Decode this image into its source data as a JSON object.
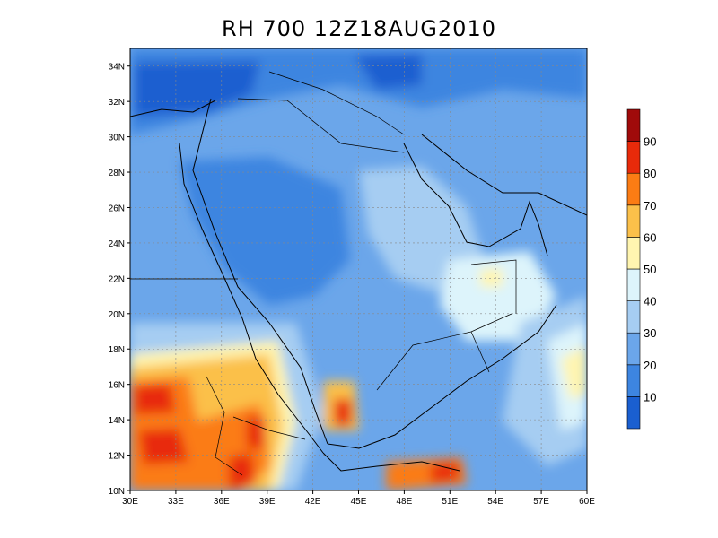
{
  "title": "RH 700 12Z18AUG2010",
  "chart_data": {
    "type": "heatmap",
    "title": "RH 700 12Z18AUG2010",
    "field": "relative humidity at 700 hPa",
    "lon_range": [
      30,
      60
    ],
    "lat_range": [
      10,
      35
    ],
    "x_ticks": [
      "30E",
      "33E",
      "36E",
      "39E",
      "42E",
      "45E",
      "48E",
      "51E",
      "54E",
      "57E",
      "60E"
    ],
    "y_ticks": [
      "10N",
      "12N",
      "14N",
      "16N",
      "18N",
      "20N",
      "22N",
      "24N",
      "26N",
      "28N",
      "30N",
      "32N",
      "34N"
    ],
    "grid": true,
    "legend_position": "right",
    "colorbar": {
      "labels": [
        "10",
        "20",
        "30",
        "40",
        "50",
        "60",
        "70",
        "80",
        "90"
      ],
      "colors": [
        "#1a5fd0",
        "#3d85e0",
        "#6ba6ea",
        "#a6cdf2",
        "#ddf4fb",
        "#fff5b0",
        "#fbc04a",
        "#fb7c14",
        "#e82a0a",
        "#a00a0a"
      ]
    },
    "regions": [
      {
        "name": "north-deep-blue",
        "lon": 38,
        "lat": 32.5,
        "level": 1
      },
      {
        "name": "north-mid-blue",
        "lon": 42,
        "lat": 31,
        "level": 2
      },
      {
        "name": "arabia-mid-blue",
        "lon": 40,
        "lat": 25,
        "level": 2
      },
      {
        "name": "central-light-blue",
        "lon": 47,
        "lat": 24,
        "level": 3
      },
      {
        "name": "pale-oman",
        "lon": 51,
        "lat": 21,
        "level": 4
      },
      {
        "name": "sudan-humid",
        "lon": 33,
        "lat": 14,
        "level": 8
      },
      {
        "name": "ethiopia-humid",
        "lon": 38,
        "lat": 12,
        "level": 9
      },
      {
        "name": "yemen-humid",
        "lon": 44,
        "lat": 14.5,
        "level": 8
      },
      {
        "name": "arabian-sea-light",
        "lon": 57,
        "lat": 16,
        "level": 5
      }
    ]
  }
}
